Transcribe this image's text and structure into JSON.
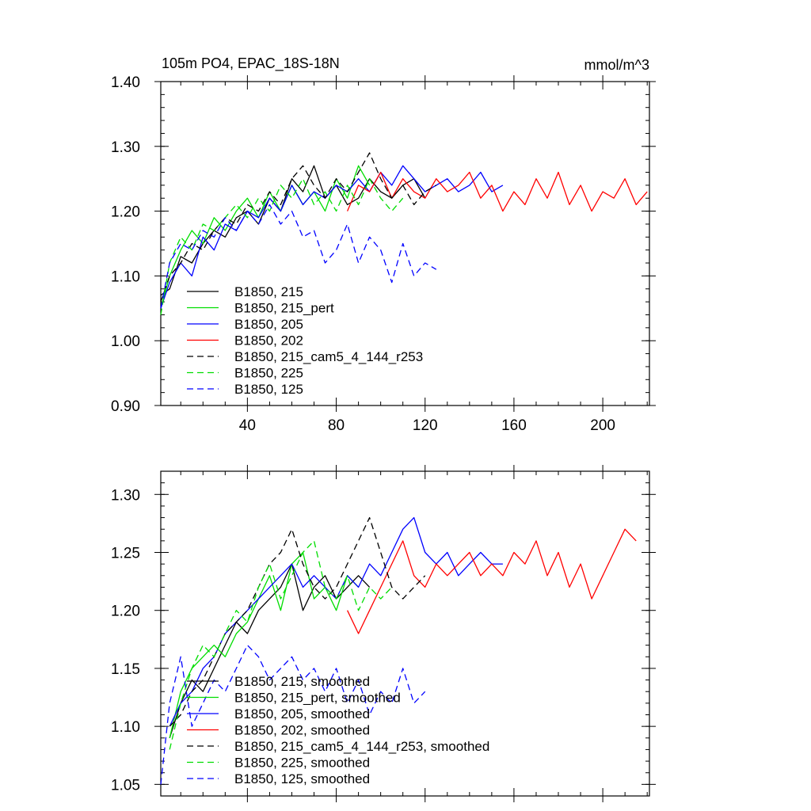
{
  "chart_data": [
    {
      "type": "line",
      "title": "105m PO4, EPAC_18S-18N",
      "units": "mmol/m^3",
      "xlabel": "",
      "ylabel": "",
      "xlim": [
        1,
        221
      ],
      "ylim": [
        0.9,
        1.4
      ],
      "x_ticks": [
        "40",
        "80",
        "120",
        "160",
        "200"
      ],
      "y_ticks": [
        "0.90",
        "1.00",
        "1.10",
        "1.20",
        "1.30",
        "1.40"
      ],
      "legend_placement": "lower-left",
      "series": [
        {
          "name": "B1850, 215",
          "color": "#000000",
          "dash": "solid",
          "x": [
            1,
            5,
            10,
            15,
            20,
            25,
            30,
            35,
            40,
            45,
            50,
            55,
            60,
            65,
            70,
            75,
            80,
            85,
            90,
            95,
            100,
            105,
            110,
            115,
            120
          ],
          "values": [
            1.07,
            1.08,
            1.13,
            1.12,
            1.15,
            1.17,
            1.16,
            1.19,
            1.2,
            1.18,
            1.22,
            1.2,
            1.25,
            1.23,
            1.27,
            1.22,
            1.24,
            1.21,
            1.22,
            1.25,
            1.23,
            1.22,
            1.24,
            1.25,
            1.22
          ]
        },
        {
          "name": "B1850, 215_pert",
          "color": "#00dd00",
          "dash": "solid",
          "x": [
            1,
            5,
            10,
            15,
            20,
            25,
            30,
            35,
            40,
            45,
            50,
            55,
            60,
            65,
            70,
            75,
            80,
            85,
            90,
            95
          ],
          "values": [
            1.05,
            1.1,
            1.14,
            1.17,
            1.15,
            1.19,
            1.17,
            1.2,
            1.22,
            1.19,
            1.23,
            1.2,
            1.24,
            1.21,
            1.23,
            1.2,
            1.25,
            1.22,
            1.27,
            1.24
          ]
        },
        {
          "name": "B1850, 205",
          "color": "#0000ff",
          "dash": "solid",
          "x": [
            1,
            5,
            10,
            15,
            20,
            25,
            30,
            35,
            40,
            45,
            50,
            55,
            60,
            65,
            70,
            75,
            80,
            85,
            90,
            95,
            100,
            105,
            110,
            115,
            120,
            125,
            130,
            135,
            140,
            145,
            150,
            155
          ],
          "values": [
            1.05,
            1.09,
            1.12,
            1.1,
            1.16,
            1.14,
            1.18,
            1.17,
            1.2,
            1.19,
            1.22,
            1.2,
            1.24,
            1.21,
            1.23,
            1.22,
            1.24,
            1.23,
            1.25,
            1.23,
            1.26,
            1.24,
            1.27,
            1.25,
            1.23,
            1.24,
            1.25,
            1.23,
            1.24,
            1.26,
            1.23,
            1.24
          ]
        },
        {
          "name": "B1850, 202",
          "color": "#ff0000",
          "dash": "solid",
          "x": [
            85,
            90,
            95,
            100,
            105,
            110,
            115,
            120,
            125,
            130,
            135,
            140,
            145,
            150,
            155,
            160,
            165,
            170,
            175,
            180,
            185,
            190,
            195,
            200,
            205,
            210,
            215,
            220
          ],
          "values": [
            1.2,
            1.24,
            1.23,
            1.26,
            1.22,
            1.25,
            1.23,
            1.22,
            1.25,
            1.23,
            1.24,
            1.26,
            1.22,
            1.24,
            1.2,
            1.23,
            1.21,
            1.25,
            1.22,
            1.26,
            1.21,
            1.24,
            1.2,
            1.23,
            1.22,
            1.25,
            1.21,
            1.23
          ]
        },
        {
          "name": "B1850, 215_cam5_4_144_r253",
          "color": "#000000",
          "dash": "dashed",
          "x": [
            1,
            5,
            10,
            15,
            20,
            25,
            30,
            35,
            40,
            45,
            50,
            55,
            60,
            65,
            70,
            75,
            80,
            85,
            90,
            95,
            100,
            105,
            110,
            115,
            120,
            125
          ],
          "values": [
            1.06,
            1.1,
            1.12,
            1.15,
            1.14,
            1.17,
            1.19,
            1.18,
            1.21,
            1.2,
            1.23,
            1.21,
            1.25,
            1.27,
            1.24,
            1.22,
            1.25,
            1.23,
            1.26,
            1.29,
            1.25,
            1.22,
            1.24,
            1.21,
            1.23,
            1.24
          ]
        },
        {
          "name": "B1850, 225",
          "color": "#00dd00",
          "dash": "dashed",
          "x": [
            1,
            5,
            10,
            15,
            20,
            25,
            30,
            35,
            40,
            45,
            50,
            55,
            60,
            65,
            70,
            75,
            80,
            85,
            90,
            95,
            100,
            105,
            110
          ],
          "values": [
            1.04,
            1.12,
            1.16,
            1.14,
            1.18,
            1.17,
            1.19,
            1.21,
            1.19,
            1.22,
            1.2,
            1.24,
            1.22,
            1.25,
            1.21,
            1.23,
            1.2,
            1.24,
            1.21,
            1.25,
            1.22,
            1.2,
            1.22
          ]
        },
        {
          "name": "B1850, 125",
          "color": "#0000ff",
          "dash": "dashed",
          "x": [
            1,
            5,
            10,
            15,
            20,
            25,
            30,
            35,
            40,
            45,
            50,
            55,
            60,
            65,
            70,
            75,
            80,
            85,
            90,
            95,
            100,
            105,
            110,
            115,
            120,
            125
          ],
          "values": [
            1.05,
            1.12,
            1.15,
            1.14,
            1.17,
            1.16,
            1.19,
            1.17,
            1.2,
            1.18,
            1.21,
            1.18,
            1.2,
            1.16,
            1.17,
            1.12,
            1.14,
            1.18,
            1.12,
            1.16,
            1.14,
            1.09,
            1.15,
            1.1,
            1.12,
            1.11
          ]
        }
      ]
    },
    {
      "type": "line",
      "xlim": [
        1,
        221
      ],
      "ylim": [
        1.04,
        1.32
      ],
      "y_ticks": [
        "1.05",
        "1.10",
        "1.15",
        "1.20",
        "1.25",
        "1.30"
      ],
      "legend_placement": "lower-left",
      "series": [
        {
          "name": "B1850, 215, smoothed",
          "color": "#000000",
          "dash": "solid",
          "x": [
            5,
            10,
            15,
            20,
            25,
            30,
            35,
            40,
            45,
            50,
            55,
            60,
            65,
            70,
            75,
            80,
            85,
            90,
            95
          ],
          "values": [
            1.09,
            1.12,
            1.14,
            1.13,
            1.15,
            1.17,
            1.19,
            1.18,
            1.2,
            1.21,
            1.22,
            1.24,
            1.2,
            1.22,
            1.23,
            1.21,
            1.22,
            1.23,
            1.22
          ]
        },
        {
          "name": "B1850, 215_pert, smoothed",
          "color": "#00dd00",
          "dash": "solid",
          "x": [
            5,
            10,
            15,
            20,
            25,
            30,
            35,
            40,
            45,
            50,
            55,
            60,
            65,
            70,
            75,
            80,
            85,
            90
          ],
          "values": [
            1.09,
            1.13,
            1.15,
            1.16,
            1.17,
            1.16,
            1.18,
            1.19,
            1.21,
            1.23,
            1.2,
            1.24,
            1.25,
            1.21,
            1.22,
            1.2,
            1.23,
            1.22
          ]
        },
        {
          "name": "B1850, 205, smoothed",
          "color": "#0000ff",
          "dash": "solid",
          "x": [
            5,
            10,
            15,
            20,
            25,
            30,
            35,
            40,
            45,
            50,
            55,
            60,
            65,
            70,
            75,
            80,
            85,
            90,
            95,
            100,
            105,
            110,
            115,
            120,
            125,
            130,
            135,
            140,
            145,
            150,
            155
          ],
          "values": [
            1.1,
            1.12,
            1.13,
            1.15,
            1.16,
            1.18,
            1.19,
            1.2,
            1.21,
            1.22,
            1.23,
            1.24,
            1.22,
            1.23,
            1.22,
            1.21,
            1.23,
            1.22,
            1.24,
            1.23,
            1.25,
            1.27,
            1.28,
            1.25,
            1.24,
            1.25,
            1.23,
            1.24,
            1.25,
            1.24,
            1.24
          ]
        },
        {
          "name": "B1850, 202, smoothed",
          "color": "#ff0000",
          "dash": "solid",
          "x": [
            85,
            90,
            95,
            100,
            105,
            110,
            115,
            120,
            125,
            130,
            135,
            140,
            145,
            150,
            155,
            160,
            165,
            170,
            175,
            180,
            185,
            190,
            195,
            200,
            205,
            210,
            215
          ],
          "values": [
            1.2,
            1.18,
            1.2,
            1.22,
            1.24,
            1.26,
            1.23,
            1.22,
            1.24,
            1.23,
            1.24,
            1.25,
            1.23,
            1.24,
            1.23,
            1.25,
            1.24,
            1.26,
            1.23,
            1.25,
            1.22,
            1.24,
            1.21,
            1.23,
            1.25,
            1.27,
            1.26
          ]
        },
        {
          "name": "B1850, 215_cam5_4_144_r253, smoothed",
          "color": "#000000",
          "dash": "dashed",
          "x": [
            5,
            10,
            15,
            20,
            25,
            30,
            35,
            40,
            45,
            50,
            55,
            60,
            65,
            70,
            75,
            80,
            85,
            90,
            95,
            100,
            105,
            110,
            115,
            120
          ],
          "values": [
            1.1,
            1.11,
            1.13,
            1.14,
            1.16,
            1.18,
            1.19,
            1.2,
            1.22,
            1.24,
            1.25,
            1.27,
            1.24,
            1.22,
            1.21,
            1.22,
            1.24,
            1.26,
            1.28,
            1.25,
            1.22,
            1.21,
            1.22,
            1.23
          ]
        },
        {
          "name": "B1850, 225, smoothed",
          "color": "#00dd00",
          "dash": "dashed",
          "x": [
            5,
            10,
            15,
            20,
            25,
            30,
            35,
            40,
            45,
            50,
            55,
            60,
            65,
            70,
            75,
            80,
            85,
            90,
            95,
            100,
            105
          ],
          "values": [
            1.08,
            1.12,
            1.15,
            1.17,
            1.16,
            1.18,
            1.2,
            1.19,
            1.22,
            1.24,
            1.21,
            1.23,
            1.25,
            1.26,
            1.22,
            1.21,
            1.23,
            1.2,
            1.22,
            1.21,
            1.22
          ]
        },
        {
          "name": "B1850, 125, smoothed",
          "color": "#0000ff",
          "dash": "dashed",
          "x": [
            1,
            5,
            10,
            15,
            20,
            25,
            30,
            35,
            40,
            45,
            50,
            55,
            60,
            65,
            70,
            75,
            80,
            85,
            90,
            95,
            100,
            105,
            110,
            115,
            120
          ],
          "values": [
            1.05,
            1.12,
            1.16,
            1.1,
            1.12,
            1.14,
            1.13,
            1.15,
            1.17,
            1.16,
            1.14,
            1.15,
            1.16,
            1.14,
            1.15,
            1.13,
            1.15,
            1.12,
            1.14,
            1.11,
            1.13,
            1.12,
            1.15,
            1.12,
            1.13
          ]
        }
      ]
    }
  ]
}
